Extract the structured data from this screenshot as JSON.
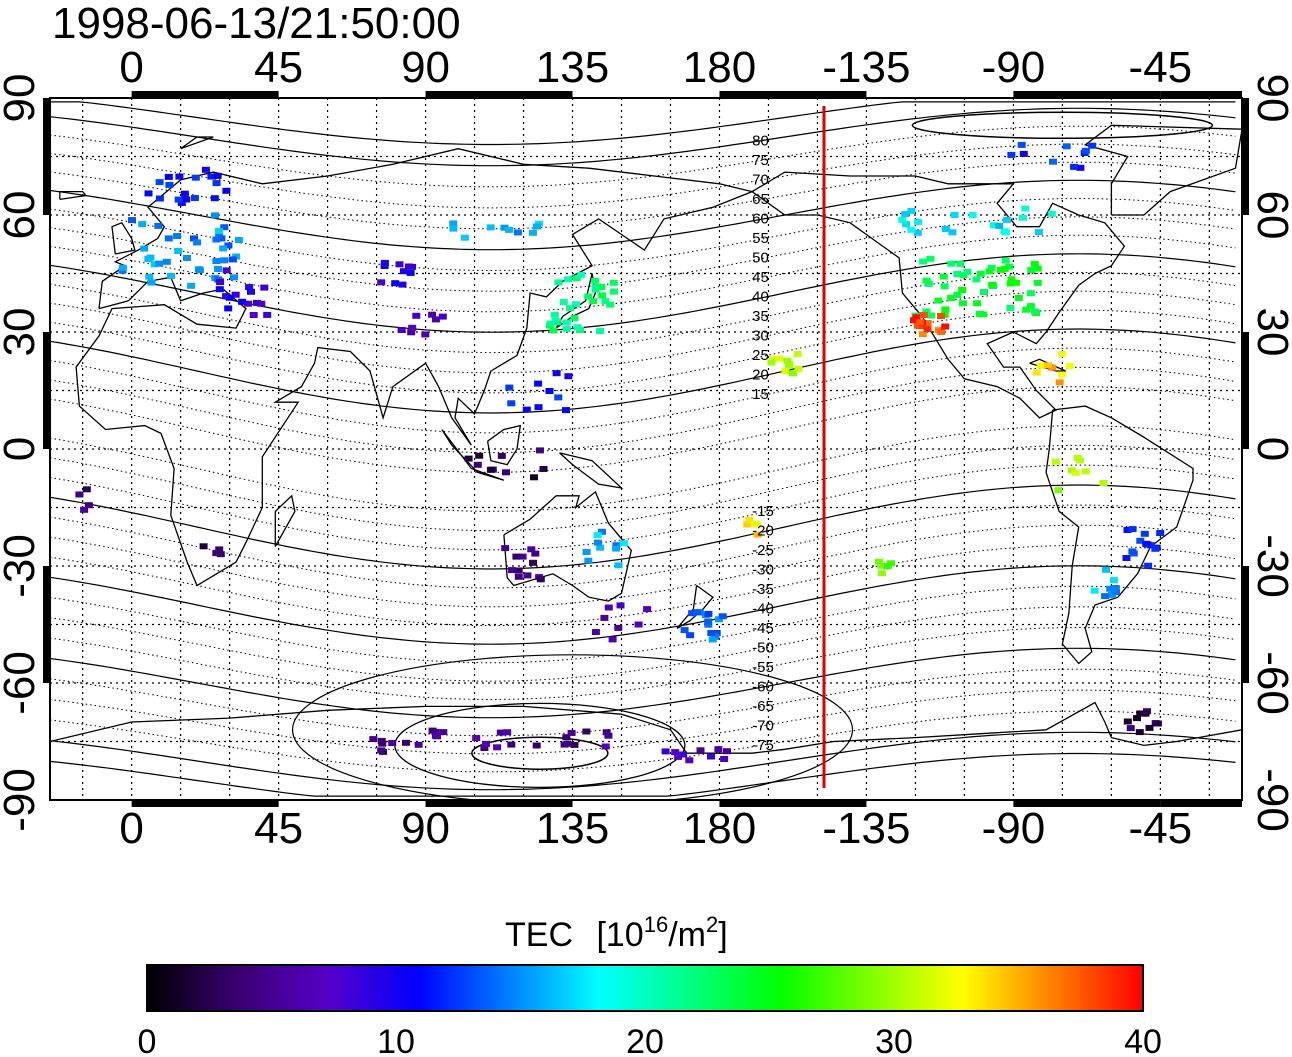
{
  "timestamp": "1998-06-13/21:50:00",
  "map": {
    "lon_ticks": [
      "0",
      "45",
      "90",
      "135",
      "180",
      "-135",
      "-90",
      "-45"
    ],
    "lon_tick_values": [
      0,
      45,
      90,
      135,
      180,
      225,
      270,
      315
    ],
    "lat_ticks": [
      "90",
      "60",
      "30",
      "0",
      "-30",
      "-60",
      "-90"
    ],
    "lat_tick_values": [
      90,
      60,
      30,
      0,
      -30,
      -60,
      -90
    ],
    "lon_range": [
      -25,
      340
    ],
    "lat_range": [
      -90,
      90
    ],
    "grid_step_deg": 15,
    "grid": true,
    "colors": {
      "frame": "#000000",
      "coast": "#000000",
      "terminator": "#e00000"
    },
    "terminator_lon": 212,
    "contour_labels": [
      "80",
      "75",
      "70",
      "65",
      "60",
      "55",
      "50",
      "45",
      "40",
      "35",
      "30",
      "25",
      "20",
      "15",
      "-15",
      "-20",
      "-25",
      "-30",
      "-35",
      "-40",
      "-45",
      "-50",
      "-55",
      "-60",
      "-65",
      "-70",
      "-75"
    ],
    "contour_label_lats": [
      80,
      75,
      70,
      65,
      60,
      55,
      50,
      45,
      40,
      35,
      30,
      25,
      20,
      15,
      -15,
      -20,
      -25,
      -30,
      -35,
      -40,
      -45,
      -50,
      -55,
      -60,
      -65,
      -70,
      -75
    ]
  },
  "colorbar": {
    "title_main": "TEC",
    "title_unit_prefix": "[10",
    "title_exp": "16",
    "title_mid": "/m",
    "title_exp2": "2",
    "title_suffix": "]",
    "tick_labels": [
      "0",
      "10",
      "20",
      "30",
      "40"
    ],
    "range": [
      0,
      40
    ],
    "colors": [
      "#000000",
      "#3a0070",
      "#5500c8",
      "#0000ff",
      "#0080ff",
      "#00ffff",
      "#00ff80",
      "#00ff00",
      "#80ff00",
      "#ffff00",
      "#ff8000",
      "#ff0000"
    ]
  },
  "chart_data": {
    "type": "scatter",
    "title": "1998-06-13/21:50:00",
    "xlabel": "",
    "ylabel": "",
    "xlim": [
      -25,
      340
    ],
    "ylim": [
      -90,
      90
    ],
    "value_label": "TEC  [10^16/m^2]",
    "clusters": [
      {
        "lon": 15,
        "lat": 50,
        "tec": 15,
        "n": 40,
        "spread_lon": 18,
        "spread_lat": 10
      },
      {
        "lon": 20,
        "lat": 68,
        "tec": 11,
        "n": 18,
        "spread_lon": 15,
        "spread_lat": 5
      },
      {
        "lon": 32,
        "lat": 40,
        "tec": 9,
        "n": 16,
        "spread_lon": 10,
        "spread_lat": 6
      },
      {
        "lon": 80,
        "lat": 45,
        "tec": 9,
        "n": 10,
        "spread_lon": 6,
        "spread_lat": 3
      },
      {
        "lon": 90,
        "lat": 32,
        "tec": 7,
        "n": 8,
        "spread_lon": 8,
        "spread_lat": 3
      },
      {
        "lon": 110,
        "lat": 56,
        "tec": 16,
        "n": 10,
        "spread_lon": 15,
        "spread_lat": 3
      },
      {
        "lon": 138,
        "lat": 38,
        "tec": 22,
        "n": 30,
        "spread_lon": 10,
        "spread_lat": 8
      },
      {
        "lon": 125,
        "lat": 15,
        "tec": 11,
        "n": 10,
        "spread_lon": 10,
        "spread_lat": 6
      },
      {
        "lon": 115,
        "lat": -5,
        "tec": 3,
        "n": 10,
        "spread_lon": 12,
        "spread_lat": 5
      },
      {
        "lon": 120,
        "lat": -30,
        "tec": 5,
        "n": 12,
        "spread_lon": 6,
        "spread_lat": 5
      },
      {
        "lon": 145,
        "lat": -25,
        "tec": 16,
        "n": 10,
        "spread_lon": 6,
        "spread_lat": 5
      },
      {
        "lon": 175,
        "lat": -45,
        "tec": 14,
        "n": 16,
        "spread_lon": 6,
        "spread_lat": 4
      },
      {
        "lon": 150,
        "lat": -45,
        "tec": 6,
        "n": 8,
        "spread_lon": 8,
        "spread_lat": 5
      },
      {
        "lon": 190,
        "lat": -20,
        "tec": 33,
        "n": 5,
        "spread_lon": 2,
        "spread_lat": 2
      },
      {
        "lon": 200,
        "lat": 22,
        "tec": 30,
        "n": 10,
        "spread_lon": 5,
        "spread_lat": 3
      },
      {
        "lon": 260,
        "lat": 42,
        "tec": 24,
        "n": 50,
        "spread_lon": 20,
        "spread_lat": 8
      },
      {
        "lon": 245,
        "lat": 32,
        "tec": 38,
        "n": 14,
        "spread_lon": 6,
        "spread_lat": 3
      },
      {
        "lon": 260,
        "lat": 58,
        "tec": 18,
        "n": 20,
        "spread_lon": 25,
        "spread_lat": 4
      },
      {
        "lon": 280,
        "lat": 75,
        "tec": 12,
        "n": 10,
        "spread_lon": 15,
        "spread_lat": 3
      },
      {
        "lon": 280,
        "lat": 20,
        "tec": 34,
        "n": 8,
        "spread_lon": 8,
        "spread_lat": 5
      },
      {
        "lon": 290,
        "lat": -5,
        "tec": 30,
        "n": 8,
        "spread_lon": 8,
        "spread_lat": 6
      },
      {
        "lon": 310,
        "lat": -25,
        "tec": 12,
        "n": 14,
        "spread_lon": 6,
        "spread_lat": 5
      },
      {
        "lon": 298,
        "lat": -35,
        "tec": 16,
        "n": 8,
        "spread_lon": 4,
        "spread_lat": 5
      },
      {
        "lon": 310,
        "lat": -70,
        "tec": 3,
        "n": 10,
        "spread_lon": 5,
        "spread_lat": 3
      },
      {
        "lon": 110,
        "lat": -75,
        "tec": 5,
        "n": 30,
        "spread_lon": 40,
        "spread_lat": 3
      },
      {
        "lon": 175,
        "lat": -78,
        "tec": 7,
        "n": 10,
        "spread_lon": 12,
        "spread_lat": 2
      },
      {
        "lon": 25,
        "lat": -25,
        "tec": 3,
        "n": 4,
        "spread_lon": 3,
        "spread_lat": 2
      },
      {
        "lon": -15,
        "lat": -13,
        "tec": 4,
        "n": 4,
        "spread_lon": 2,
        "spread_lat": 3
      },
      {
        "lon": 230,
        "lat": -30,
        "tec": 28,
        "n": 5,
        "spread_lon": 3,
        "spread_lat": 2
      }
    ]
  }
}
